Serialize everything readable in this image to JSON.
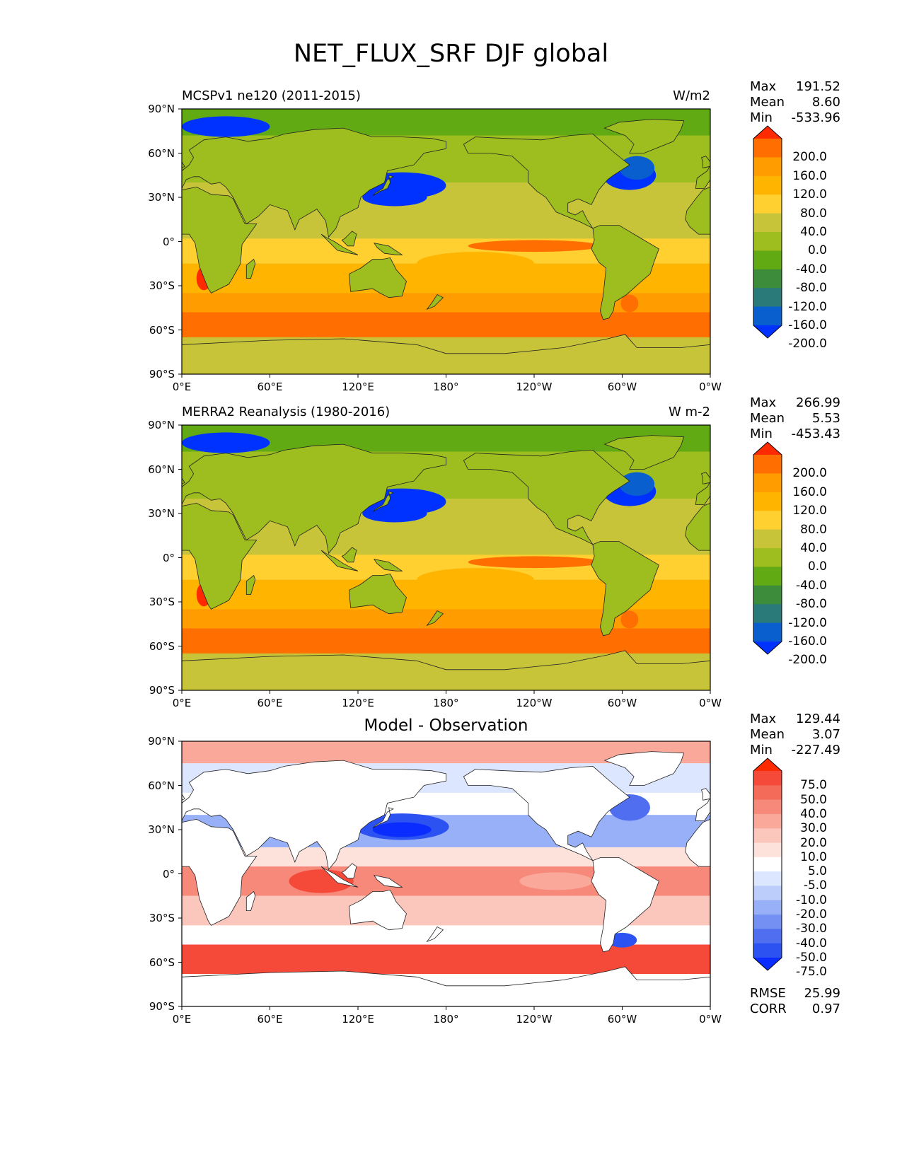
{
  "title": "NET_FLUX_SRF DJF global",
  "axes": {
    "y_ticks": [
      "90°N",
      "60°N",
      "30°N",
      "0°",
      "30°S",
      "60°S",
      "90°S"
    ],
    "x_ticks": [
      "0°E",
      "60°E",
      "120°E",
      "180°",
      "120°W",
      "60°W",
      "0°W"
    ]
  },
  "panels": [
    {
      "id": "model",
      "left_title": "MCSPv1 ne120 (2011-2015)",
      "right_title": "W/m2",
      "center_title": "",
      "stats": [
        {
          "label": "Max",
          "value": "191.52"
        },
        {
          "label": "Mean",
          "value": "8.60"
        },
        {
          "label": "Min",
          "value": "-533.96"
        }
      ],
      "colorbar_labels": [
        "200.0",
        "160.0",
        "120.0",
        "80.0",
        "40.0",
        "0.0",
        "-40.0",
        "-80.0",
        "-120.0",
        "-160.0",
        "-200.0"
      ],
      "colorbar_colors": [
        "#ff2a00",
        "#ff6e00",
        "#ff9c00",
        "#ffb400",
        "#ffd030",
        "#c8c43a",
        "#9dbe1e",
        "#62aa14",
        "#3c8c3c",
        "#2a7a7a",
        "#0a5fcf",
        "#0032ff"
      ]
    },
    {
      "id": "obs",
      "left_title": "MERRA2 Reanalysis (1980-2016)",
      "right_title": "W m-2",
      "center_title": "",
      "stats": [
        {
          "label": "Max",
          "value": "266.99"
        },
        {
          "label": "Mean",
          "value": "5.53"
        },
        {
          "label": "Min",
          "value": "-453.43"
        }
      ],
      "colorbar_labels": [
        "200.0",
        "160.0",
        "120.0",
        "80.0",
        "40.0",
        "0.0",
        "-40.0",
        "-80.0",
        "-120.0",
        "-160.0",
        "-200.0"
      ],
      "colorbar_colors": [
        "#ff2a00",
        "#ff6e00",
        "#ff9c00",
        "#ffb400",
        "#ffd030",
        "#c8c43a",
        "#9dbe1e",
        "#62aa14",
        "#3c8c3c",
        "#2a7a7a",
        "#0a5fcf",
        "#0032ff"
      ]
    },
    {
      "id": "diff",
      "left_title": "",
      "right_title": "",
      "center_title": "Model - Observation",
      "stats": [
        {
          "label": "Max",
          "value": "129.44"
        },
        {
          "label": "Mean",
          "value": "3.07"
        },
        {
          "label": "Min",
          "value": "-227.49"
        }
      ],
      "colorbar_labels": [
        "75.0",
        "50.0",
        "40.0",
        "30.0",
        "20.0",
        "10.0",
        "5.0",
        "-5.0",
        "-10.0",
        "-20.0",
        "-30.0",
        "-40.0",
        "-50.0",
        "-75.0"
      ],
      "colorbar_colors": [
        "#ff2a00",
        "#f5493a",
        "#f56b5a",
        "#f7897a",
        "#f9a89a",
        "#fbc6bb",
        "#fde2dc",
        "#ffffff",
        "#dde6ff",
        "#bccdfc",
        "#98b0f8",
        "#7390f2",
        "#4f6ff0",
        "#2d52f2",
        "#0a2cff"
      ],
      "footer_stats": [
        {
          "label": "RMSE",
          "value": "25.99"
        },
        {
          "label": "CORR",
          "value": "0.97"
        }
      ]
    }
  ]
}
